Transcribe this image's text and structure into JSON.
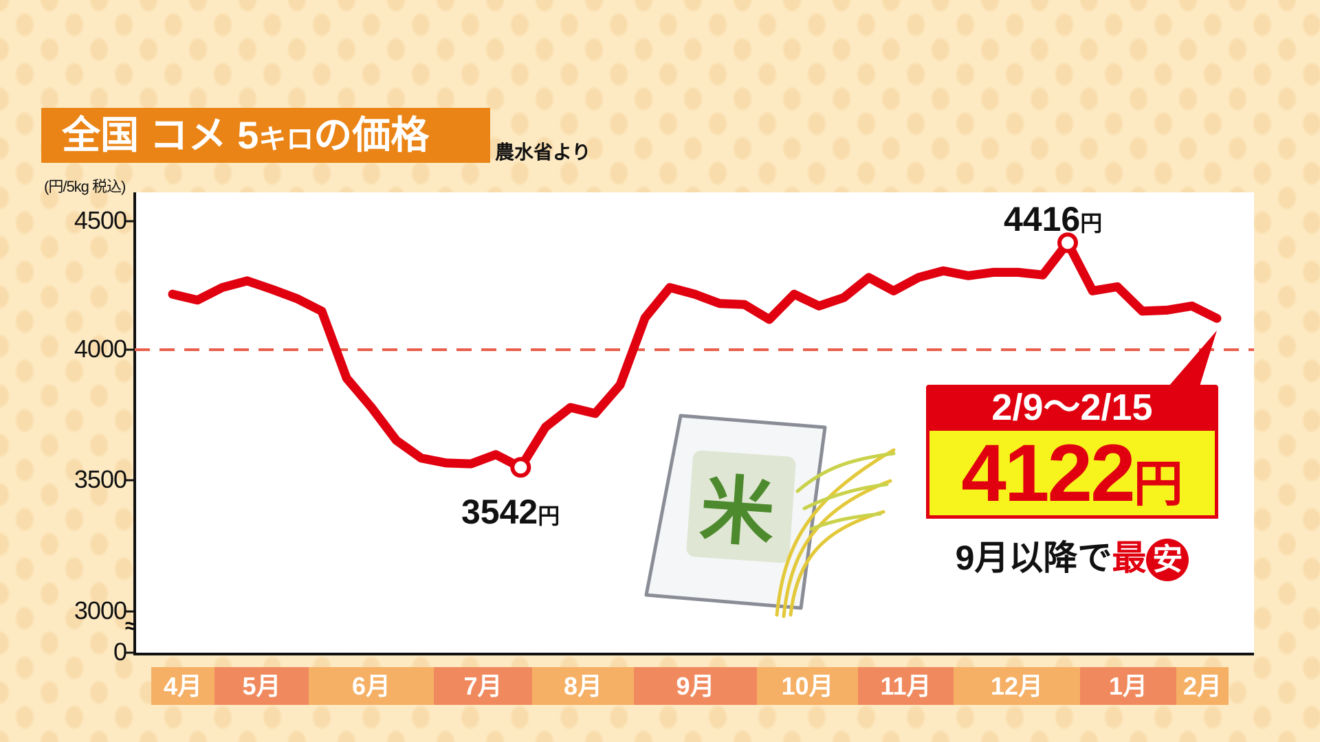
{
  "header": {
    "title_main_1": "全国 コメ 5",
    "title_small": "キロ",
    "title_main_2": "の価格",
    "source": "農水省より"
  },
  "callout": {
    "period": "2/9〜2/15",
    "value": "4122",
    "unit": "円",
    "note_prefix": "9月以降で",
    "note_red": "最",
    "note_circle": "安"
  },
  "labels": {
    "max_value": "4416",
    "min_value": "3542",
    "yen": "円"
  },
  "chart_data": {
    "type": "line",
    "ylabel": "(円/5kg 税込)",
    "yticks": [
      "4500",
      "4000",
      "3500",
      "3000",
      "0"
    ],
    "ylim": [
      3000,
      4500
    ],
    "axis_break": "≈",
    "reference_line": 4000,
    "grid": false,
    "months": [
      "4月",
      "5月",
      "6月",
      "7月",
      "8月",
      "9月",
      "10月",
      "11月",
      "12月",
      "1月",
      "2月"
    ],
    "series": [
      {
        "color": "#e0000f",
        "values": [
          4216,
          4193,
          4242,
          4268,
          4235,
          4199,
          4150,
          3889,
          3775,
          3647,
          3578,
          3559,
          3556,
          3592,
          3542,
          3699,
          3775,
          3752,
          3863,
          4124,
          4242,
          4216,
          4180,
          4176,
          4118,
          4216,
          4170,
          4203,
          4281,
          4229,
          4281,
          4307,
          4288,
          4301,
          4301,
          4291,
          4416,
          4229,
          4245,
          4150,
          4154,
          4170,
          4122
        ]
      }
    ],
    "annotations": [
      {
        "label": "4416円",
        "index": 36
      },
      {
        "label": "3542円",
        "index": 14
      },
      {
        "label": "4122円",
        "index": 42
      }
    ],
    "colors": {
      "band_a": "#f5b065",
      "band_b": "#f08a5e",
      "dashed": "#e8604c"
    }
  }
}
